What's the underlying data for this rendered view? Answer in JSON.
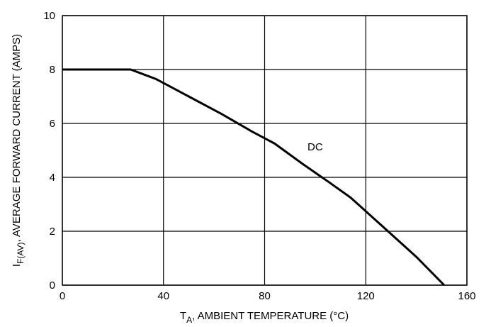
{
  "chart_data": {
    "type": "line",
    "title": "",
    "xlabel": {
      "main": "T",
      "sub": "A",
      "rest": ", AMBIENT TEMPERATURE (°C)"
    },
    "ylabel": {
      "main": "I",
      "sub": "F(AV)",
      "rest": ", AVERAGE FORWARD CURRENT (AMPS)"
    },
    "xlim": [
      0,
      160
    ],
    "ylim": [
      0,
      10
    ],
    "xticks": [
      0,
      40,
      80,
      120,
      160
    ],
    "yticks": [
      0,
      2,
      4,
      6,
      8,
      10
    ],
    "grid": true,
    "legend": "none",
    "series": [
      {
        "name": "",
        "x": [
          0,
          27,
          37,
          50,
          63,
          75,
          84,
          95,
          105,
          114,
          127,
          140,
          151
        ],
        "y": [
          8.0,
          8.0,
          7.65,
          7.0,
          6.35,
          5.7,
          5.25,
          4.5,
          3.85,
          3.25,
          2.15,
          1.05,
          0.0
        ]
      }
    ],
    "annotations": [
      {
        "text": "DC",
        "x": 100,
        "y": 5.0
      }
    ],
    "colors": {
      "line": "#000000",
      "grid": "#000000",
      "background": "#ffffff"
    }
  }
}
